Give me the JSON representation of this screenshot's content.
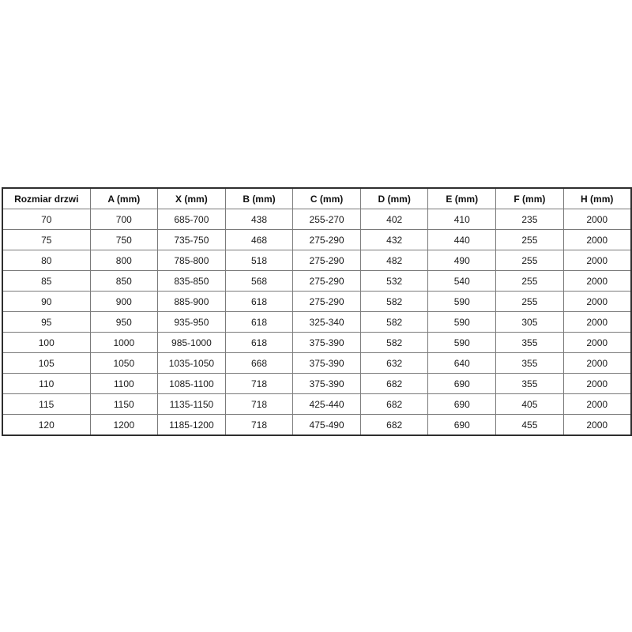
{
  "page": {
    "background_color": "#ffffff",
    "text_color": "#1a1a1a",
    "grid_color": "#7a7a7a",
    "outer_border_color": "#2e2e2e"
  },
  "table": {
    "name": "door-dimensions-table",
    "headers": [
      "Rozmiar drzwi",
      "A (mm)",
      "X (mm)",
      "B (mm)",
      "C (mm)",
      "D (mm)",
      "E (mm)",
      "F (mm)",
      "H (mm)"
    ],
    "rows": [
      [
        "70",
        "700",
        "685-700",
        "438",
        "255-270",
        "402",
        "410",
        "235",
        "2000"
      ],
      [
        "75",
        "750",
        "735-750",
        "468",
        "275-290",
        "432",
        "440",
        "255",
        "2000"
      ],
      [
        "80",
        "800",
        "785-800",
        "518",
        "275-290",
        "482",
        "490",
        "255",
        "2000"
      ],
      [
        "85",
        "850",
        "835-850",
        "568",
        "275-290",
        "532",
        "540",
        "255",
        "2000"
      ],
      [
        "90",
        "900",
        "885-900",
        "618",
        "275-290",
        "582",
        "590",
        "255",
        "2000"
      ],
      [
        "95",
        "950",
        "935-950",
        "618",
        "325-340",
        "582",
        "590",
        "305",
        "2000"
      ],
      [
        "100",
        "1000",
        "985-1000",
        "618",
        "375-390",
        "582",
        "590",
        "355",
        "2000"
      ],
      [
        "105",
        "1050",
        "1035-1050",
        "668",
        "375-390",
        "632",
        "640",
        "355",
        "2000"
      ],
      [
        "110",
        "1100",
        "1085-1100",
        "718",
        "375-390",
        "682",
        "690",
        "355",
        "2000"
      ],
      [
        "115",
        "1150",
        "1135-1150",
        "718",
        "425-440",
        "682",
        "690",
        "405",
        "2000"
      ],
      [
        "120",
        "1200",
        "1185-1200",
        "718",
        "475-490",
        "682",
        "690",
        "455",
        "2000"
      ]
    ]
  }
}
